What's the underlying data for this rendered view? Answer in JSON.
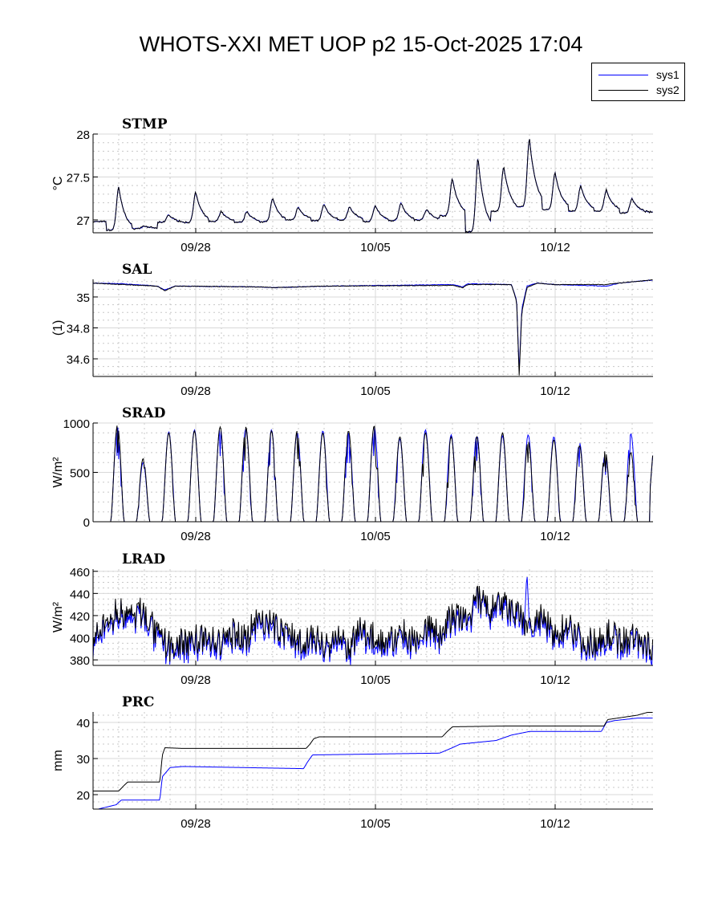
{
  "title": "WHOTS-XXI MET UOP p2 15-Oct-2025 17:04",
  "legend": [
    {
      "label": "sys1",
      "color": "#0000ff"
    },
    {
      "label": "sys2",
      "color": "#000000"
    }
  ],
  "chart_data": {
    "type": "line",
    "x_start": "2025-09-24 00:00",
    "x_end_days": 21.8,
    "xticks": [
      {
        "day": 4,
        "label": "09/28"
      },
      {
        "day": 11,
        "label": "10/05"
      },
      {
        "day": 18,
        "label": "10/12"
      }
    ],
    "panels": [
      {
        "name": "STMP",
        "ylabel": "°C",
        "ylim": [
          26.85,
          28
        ],
        "yticks": [
          27,
          27.5,
          28
        ],
        "yminor": 0.1,
        "kind": "diurnal",
        "peak_days": [
          1.0,
          2.0,
          2.95,
          4.0,
          5.0,
          6.0,
          7.0,
          8.0,
          9.0,
          10.0,
          11.0,
          12.0,
          13.0,
          14.0,
          15.0,
          16.0,
          17.0,
          18.0,
          19.0,
          20.0,
          21.0
        ],
        "peaks": [
          27.38,
          26.93,
          27.06,
          27.32,
          27.1,
          27.1,
          27.25,
          27.15,
          27.18,
          27.15,
          27.17,
          27.2,
          27.12,
          27.48,
          27.72,
          27.62,
          27.95,
          27.55,
          27.4,
          27.35,
          27.25
        ],
        "bases": [
          26.98,
          26.88,
          26.9,
          26.97,
          26.97,
          26.98,
          26.97,
          26.98,
          27.0,
          26.99,
          27.0,
          26.98,
          26.99,
          27.0,
          27.05,
          26.86,
          27.1,
          27.15,
          27.12,
          27.1,
          27.1,
          27.08
        ]
      },
      {
        "name": "SAL",
        "ylabel": "(1)",
        "ylim": [
          34.486,
          35.114
        ],
        "yticks": [
          34.6,
          34.8,
          35
        ],
        "yminor": 0.05,
        "kind": "points",
        "sys2": [
          [
            0,
            35.09
          ],
          [
            1.2,
            35.08
          ],
          [
            2.5,
            35.07
          ],
          [
            2.8,
            35.04
          ],
          [
            3.2,
            35.07
          ],
          [
            6.5,
            35.065
          ],
          [
            7.0,
            35.06
          ],
          [
            9,
            35.07
          ],
          [
            14,
            35.075
          ],
          [
            14.4,
            35.06
          ],
          [
            14.6,
            35.08
          ],
          [
            16.3,
            35.08
          ],
          [
            16.5,
            34.97
          ],
          [
            16.6,
            34.49
          ],
          [
            16.7,
            34.9
          ],
          [
            16.9,
            35.06
          ],
          [
            17.3,
            35.09
          ],
          [
            18,
            35.08
          ],
          [
            20,
            35.08
          ],
          [
            20.5,
            35.09
          ],
          [
            21.8,
            35.11
          ]
        ],
        "sys1": [
          [
            0,
            35.09
          ],
          [
            1.2,
            35.085
          ],
          [
            2.5,
            35.07
          ],
          [
            2.8,
            35.045
          ],
          [
            3.2,
            35.07
          ],
          [
            6.5,
            35.065
          ],
          [
            7.0,
            35.06
          ],
          [
            9,
            35.07
          ],
          [
            14,
            35.08
          ],
          [
            14.4,
            35.065
          ],
          [
            14.6,
            35.085
          ],
          [
            16.3,
            35.08
          ],
          [
            16.5,
            34.98
          ],
          [
            16.6,
            34.52
          ],
          [
            16.7,
            34.92
          ],
          [
            16.9,
            35.07
          ],
          [
            17.3,
            35.09
          ],
          [
            18,
            35.08
          ],
          [
            20,
            35.07
          ],
          [
            20.5,
            35.09
          ],
          [
            21.8,
            35.11
          ]
        ]
      },
      {
        "name": "SRAD",
        "ylabel": "W/m²",
        "ylim": [
          0,
          1000
        ],
        "yticks": [
          0,
          500,
          1000
        ],
        "yminor": 100,
        "kind": "solar",
        "noon_days": [
          0.95,
          1.95,
          2.95,
          3.95,
          4.95,
          5.95,
          6.95,
          7.95,
          8.95,
          9.95,
          10.95,
          11.95,
          12.95,
          13.95,
          14.95,
          15.95,
          16.95,
          17.95,
          18.95,
          19.95,
          20.95
        ],
        "sys2": [
          980,
          640,
          900,
          920,
          960,
          960,
          920,
          920,
          900,
          920,
          970,
          860,
          900,
          860,
          860,
          900,
          820,
          830,
          770,
          720,
          700
        ],
        "sys1": [
          960,
          600,
          910,
          930,
          950,
          940,
          930,
          900,
          920,
          900,
          960,
          840,
          930,
          880,
          880,
          870,
          880,
          860,
          800,
          680,
          890
        ]
      },
      {
        "name": "LRAD",
        "ylabel": "W/m²",
        "ylim": [
          375,
          462
        ],
        "yticks": [
          380,
          400,
          420,
          440,
          460
        ],
        "yminor": 5,
        "kind": "noisy",
        "sys2_halfday": [
          395,
          412,
          425,
          418,
          425,
          400,
          392,
          395,
          400,
          398,
          395,
          405,
          402,
          420,
          410,
          405,
          398,
          400,
          395,
          398,
          392,
          408,
          400,
          395,
          405,
          398,
          410,
          402,
          420,
          415,
          435,
          425,
          430,
          420,
          410,
          418,
          400,
          415,
          398,
          395,
          405,
          398,
          400,
          395
        ],
        "sys1_offset": -4,
        "sys1_spike": {
          "day": 16.9,
          "value": 460
        }
      },
      {
        "name": "PRC",
        "ylabel": "mm",
        "ylim": [
          16,
          42.9
        ],
        "yticks": [
          20,
          30,
          40
        ],
        "yminor": 2,
        "kind": "points",
        "sys2": [
          [
            0,
            21
          ],
          [
            1.0,
            21
          ],
          [
            1.2,
            22.5
          ],
          [
            1.35,
            23.5
          ],
          [
            2.6,
            23.5
          ],
          [
            2.7,
            31
          ],
          [
            2.8,
            33
          ],
          [
            3.5,
            32.8
          ],
          [
            8.3,
            32.8
          ],
          [
            8.45,
            34
          ],
          [
            8.6,
            35.5
          ],
          [
            8.8,
            36
          ],
          [
            13.6,
            36
          ],
          [
            13.8,
            37.5
          ],
          [
            14.0,
            38.8
          ],
          [
            16.0,
            39
          ],
          [
            19.9,
            39
          ],
          [
            20.05,
            40.8
          ],
          [
            21.2,
            42
          ],
          [
            21.6,
            42.8
          ],
          [
            21.8,
            42.8
          ]
        ],
        "sys1": [
          [
            0,
            16
          ],
          [
            0.2,
            16
          ],
          [
            0.9,
            17.2
          ],
          [
            1.1,
            18.5
          ],
          [
            2.6,
            18.5
          ],
          [
            2.7,
            25
          ],
          [
            3.0,
            27.5
          ],
          [
            3.5,
            27.8
          ],
          [
            8.2,
            27.2
          ],
          [
            8.35,
            29
          ],
          [
            8.55,
            31
          ],
          [
            13.5,
            31.5
          ],
          [
            14.0,
            33
          ],
          [
            14.3,
            34
          ],
          [
            15.7,
            35
          ],
          [
            16.3,
            36.5
          ],
          [
            17.0,
            37.5
          ],
          [
            19.8,
            37.5
          ],
          [
            20.0,
            40
          ],
          [
            20.3,
            40.5
          ],
          [
            21.2,
            41.2
          ],
          [
            21.8,
            41.2
          ]
        ]
      }
    ]
  }
}
